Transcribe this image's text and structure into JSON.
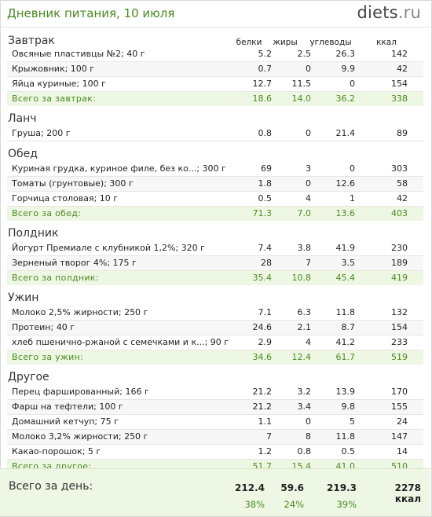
{
  "title": "Дневник питания, 10 июля",
  "logo": {
    "name": "diets",
    "tld": ".ru"
  },
  "columns": {
    "protein": "белки",
    "fat": "жиры",
    "carbs": "углеводы",
    "kcal": "ккал"
  },
  "sections": [
    {
      "name": "Завтрак",
      "items": [
        {
          "name": "Овсяные пластивцы №2; 40 г",
          "b": "5.2",
          "z": "2.5",
          "u": "26.3",
          "k": "142"
        },
        {
          "name": "Крыжовник; 100 г",
          "b": "0.7",
          "z": "0",
          "u": "9.9",
          "k": "42"
        },
        {
          "name": "Яйца куриные; 100 г",
          "b": "12.7",
          "z": "11.5",
          "u": "0",
          "k": "154"
        }
      ],
      "total": {
        "name": "Всего за завтрак:",
        "b": "18.6",
        "z": "14.0",
        "u": "36.2",
        "k": "338"
      }
    },
    {
      "name": "Ланч",
      "items": [
        {
          "name": "Груша; 200 г",
          "b": "0.8",
          "z": "0",
          "u": "21.4",
          "k": "89"
        }
      ]
    },
    {
      "name": "Обед",
      "items": [
        {
          "name": "Куриная грудка, куриное филе, без ко...; 300 г",
          "b": "69",
          "z": "3",
          "u": "0",
          "k": "303"
        },
        {
          "name": "Томаты (грунтовые); 300 г",
          "b": "1.8",
          "z": "0",
          "u": "12.6",
          "k": "58"
        },
        {
          "name": "Горчица столовая; 10 г",
          "b": "0.5",
          "z": "4",
          "u": "1",
          "k": "42"
        }
      ],
      "total": {
        "name": "Всего за обед:",
        "b": "71.3",
        "z": "7.0",
        "u": "13.6",
        "k": "403"
      }
    },
    {
      "name": "Полдник",
      "items": [
        {
          "name": "Йогурт Премиале с клубникой 1,2%; 320 г",
          "b": "7.4",
          "z": "3.8",
          "u": "41.9",
          "k": "230"
        },
        {
          "name": "Зерненый творог 4%; 175 г",
          "b": "28",
          "z": "7",
          "u": "3.5",
          "k": "189"
        }
      ],
      "total": {
        "name": "Всего за полдник:",
        "b": "35.4",
        "z": "10.8",
        "u": "45.4",
        "k": "419"
      }
    },
    {
      "name": "Ужин",
      "items": [
        {
          "name": "Молоко 2,5% жирности; 250 г",
          "b": "7.1",
          "z": "6.3",
          "u": "11.8",
          "k": "132"
        },
        {
          "name": "Протеин; 40 г",
          "b": "24.6",
          "z": "2.1",
          "u": "8.7",
          "k": "154"
        },
        {
          "name": "хлеб пшенично-ржаной с семечками и к...; 90 г",
          "b": "2.9",
          "z": "4",
          "u": "41.2",
          "k": "233"
        }
      ],
      "total": {
        "name": "Всего за ужин:",
        "b": "34.6",
        "z": "12.4",
        "u": "61.7",
        "k": "519"
      }
    },
    {
      "name": "Другое",
      "items": [
        {
          "name": "Перец фаршированный; 166 г",
          "b": "21.2",
          "z": "3.2",
          "u": "13.9",
          "k": "170"
        },
        {
          "name": "Фарш на тефтели; 100 г",
          "b": "21.2",
          "z": "3.4",
          "u": "9.8",
          "k": "155"
        },
        {
          "name": "Домашний кетчуп; 75 г",
          "b": "1.1",
          "z": "0",
          "u": "5",
          "k": "24"
        },
        {
          "name": "Молоко 3,2% жирности; 250 г",
          "b": "7",
          "z": "8",
          "u": "11.8",
          "k": "147"
        },
        {
          "name": "Какао-порошок; 5 г",
          "b": "1.2",
          "z": "0.8",
          "u": "0.5",
          "k": "14"
        }
      ],
      "total": {
        "name": "Всего за другое:",
        "b": "51.7",
        "z": "15.4",
        "u": "41.0",
        "k": "510"
      }
    }
  ],
  "day": {
    "label": "Всего за день:",
    "b": "212.4",
    "z": "59.6",
    "u": "219.3",
    "k": "2278 ккал",
    "pb": "38%",
    "pz": "24%",
    "pu": "39%"
  }
}
